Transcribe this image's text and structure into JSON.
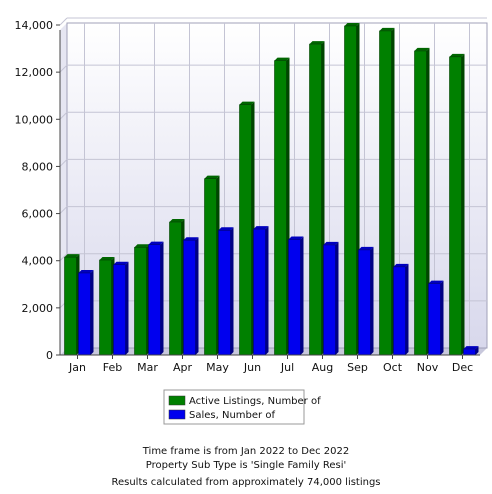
{
  "chart_data": {
    "type": "bar",
    "categories": [
      "Jan",
      "Feb",
      "Mar",
      "Apr",
      "May",
      "Jun",
      "Jul",
      "Aug",
      "Sep",
      "Oct",
      "Nov",
      "Dec"
    ],
    "series": [
      {
        "name": "Active Listings, Number of",
        "color": "#008000",
        "values": [
          4150,
          4030,
          4570,
          5640,
          7480,
          10620,
          12490,
          13190,
          13960,
          13750,
          12900,
          12650
        ]
      },
      {
        "name": "Sales, Number of",
        "color": "#0000ee",
        "values": [
          3480,
          3830,
          4680,
          4870,
          5290,
          5340,
          4900,
          4670,
          4460,
          3740,
          3030,
          250
        ]
      }
    ],
    "ylim": [
      0,
      14000
    ],
    "yticks": [
      0,
      2000,
      4000,
      6000,
      8000,
      10000,
      12000,
      14000
    ],
    "ytick_labels": [
      "0",
      "2,000",
      "4,000",
      "6,000",
      "8,000",
      "10,000",
      "12,000",
      "14,000"
    ],
    "grid": true,
    "legend_position": "bottom-center",
    "title": "",
    "xlabel": "",
    "ylabel": ""
  },
  "footer": {
    "line1": "Time frame is from Jan 2022 to Dec 2022",
    "line2": "Property Sub Type is 'Single Family Resi'",
    "line3": "Results calculated from approximately 74,000 listings"
  }
}
